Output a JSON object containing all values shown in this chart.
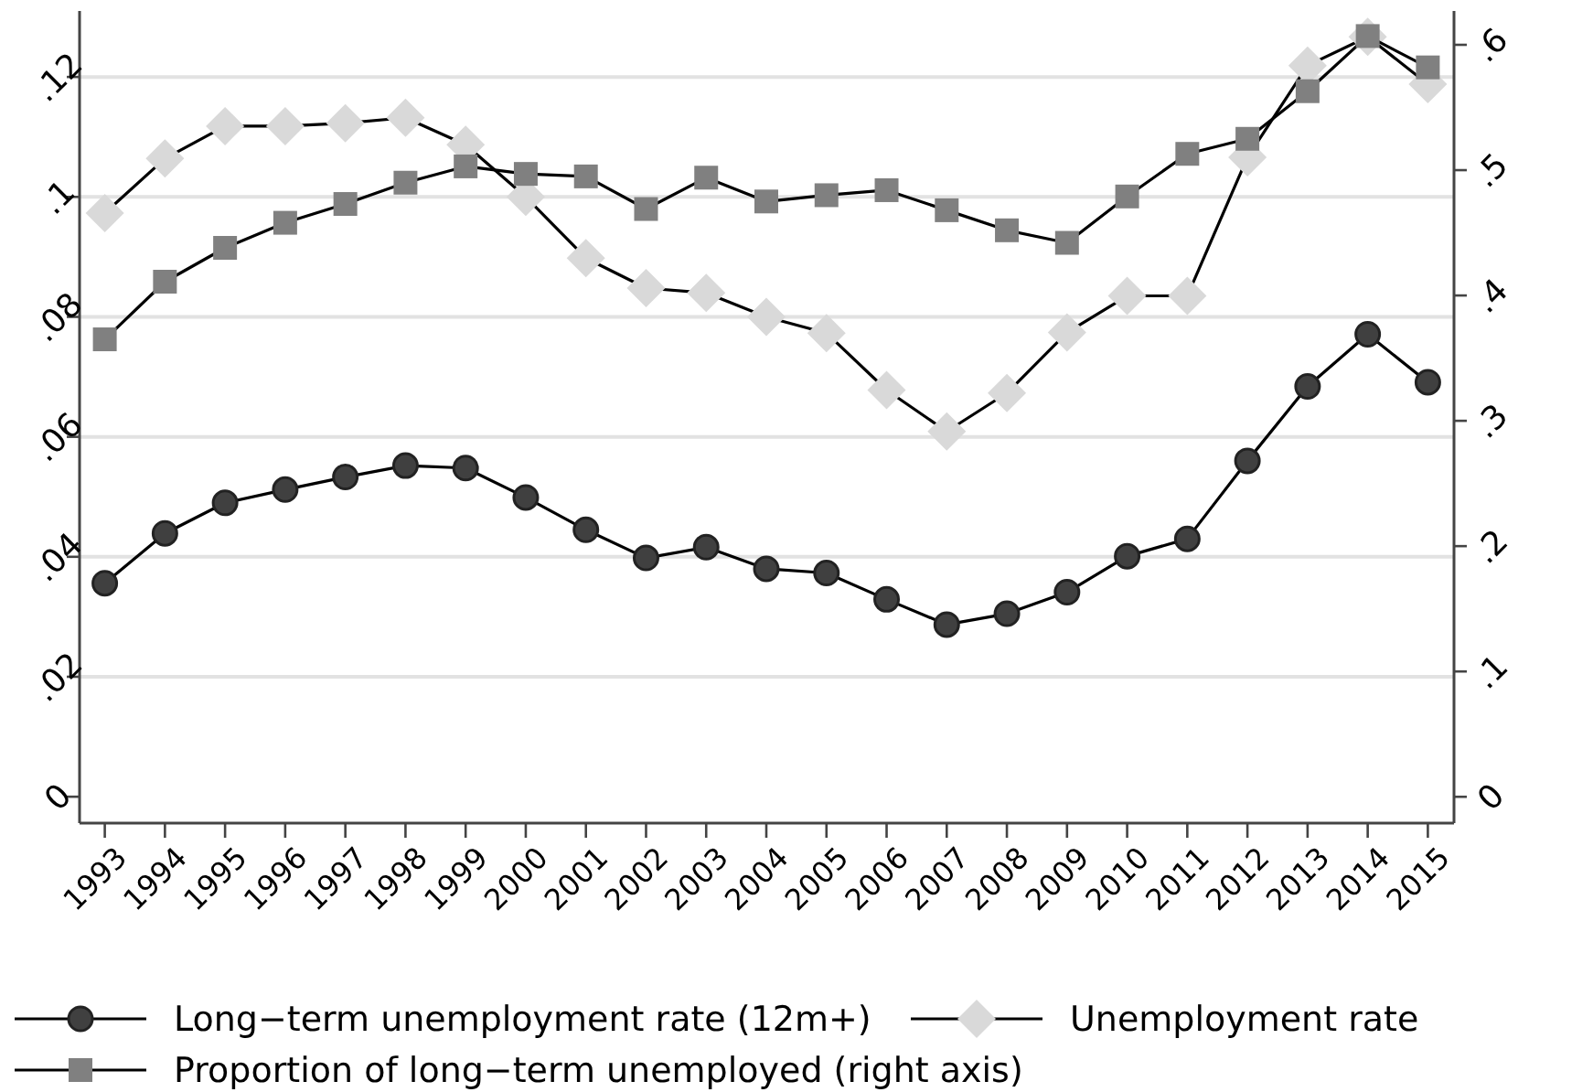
{
  "chart_data": {
    "type": "line",
    "categories": [
      "1993",
      "1994",
      "1995",
      "1996",
      "1997",
      "1998",
      "1999",
      "2000",
      "2001",
      "2002",
      "2003",
      "2004",
      "2005",
      "2006",
      "2007",
      "2008",
      "2009",
      "2010",
      "2011",
      "2012",
      "2013",
      "2014",
      "2015"
    ],
    "series": [
      {
        "name": "Long−term unemployment rate (12m+)",
        "color": "#404040",
        "marker": "circle",
        "values": [
          0.0356,
          0.0439,
          0.049,
          0.0512,
          0.0533,
          0.0552,
          0.0548,
          0.0499,
          0.0445,
          0.0398,
          0.0416,
          0.038,
          0.0373,
          0.0329,
          0.0287,
          0.0305,
          0.0341,
          0.0401,
          0.043,
          0.056,
          0.0684,
          0.0771,
          0.0691
        ]
      },
      {
        "name": "Unemployment rate",
        "color": "#d9d9d9",
        "marker": "diamond",
        "values": [
          0.0973,
          0.1064,
          0.1118,
          0.1118,
          0.1123,
          0.1132,
          0.1087,
          0.1,
          0.0898,
          0.0848,
          0.084,
          0.08,
          0.0773,
          0.0678,
          0.0609,
          0.0673,
          0.0774,
          0.0835,
          0.0835,
          0.1066,
          0.1219,
          0.1267,
          0.1188
        ]
      },
      {
        "name": "Proportion of long−term unemployed (right axis)",
        "color": "#808080",
        "marker": "square",
        "axis": "y2",
        "values": [
          0.365,
          0.411,
          0.438,
          0.458,
          0.473,
          0.49,
          0.503,
          0.497,
          0.495,
          0.469,
          0.494,
          0.475,
          0.48,
          0.484,
          0.468,
          0.452,
          0.442,
          0.479,
          0.513,
          0.525,
          0.563,
          0.607,
          0.582
        ]
      }
    ],
    "ylim": [
      -0.0044,
      0.131
    ],
    "yticks": [
      {
        "value": 0,
        "label": "0"
      },
      {
        "value": 0.02,
        "label": ".02"
      },
      {
        "value": 0.04,
        "label": ".04"
      },
      {
        "value": 0.06,
        "label": ".06"
      },
      {
        "value": 0.08,
        "label": ".08"
      },
      {
        "value": 0.1,
        "label": ".1"
      },
      {
        "value": 0.12,
        "label": ".12"
      }
    ],
    "y2lim": [
      -0.021,
      0.627
    ],
    "y2ticks": [
      {
        "value": 0,
        "label": "0"
      },
      {
        "value": 0.1,
        "label": ".1"
      },
      {
        "value": 0.2,
        "label": ".2"
      },
      {
        "value": 0.3,
        "label": ".3"
      },
      {
        "value": 0.4,
        "label": ".4"
      },
      {
        "value": 0.5,
        "label": ".5"
      },
      {
        "value": 0.6,
        "label": ".6"
      }
    ],
    "grid": "y",
    "legend": "bottom",
    "line_style": "solid"
  }
}
